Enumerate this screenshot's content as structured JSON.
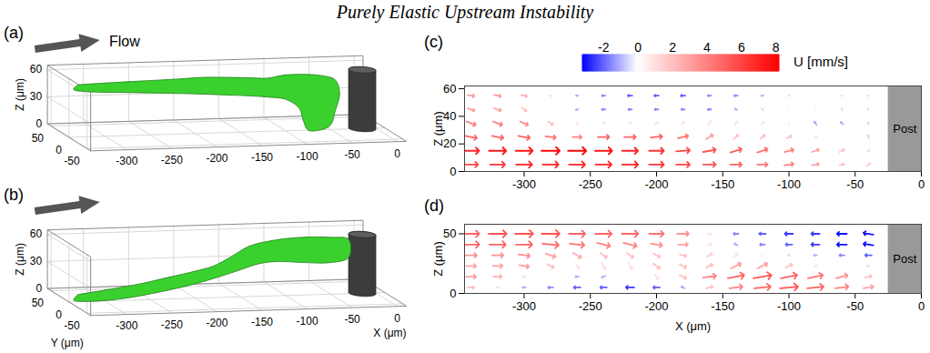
{
  "title": "Purely Elastic Upstream Instability",
  "colorbar": {
    "label": "U [mm/s]",
    "lim": [
      -3.2,
      8.2
    ],
    "midpoint": 0,
    "ticks": [
      -2,
      0,
      2,
      4,
      6,
      8
    ],
    "colors": [
      "#0000ff",
      "#ffffff",
      "#ff0000"
    ]
  },
  "chart_data": [
    {
      "type": "isosurface",
      "label": "(a)",
      "annotation": "Flow",
      "xlim": [
        -340,
        10
      ],
      "ylim": [
        -60,
        60
      ],
      "zlim": [
        0,
        65
      ],
      "xticks": [
        -300,
        -250,
        -200,
        -150,
        -100,
        -50,
        0
      ],
      "yticks": [
        -50,
        0,
        50
      ],
      "zticks": [
        0,
        30,
        60
      ],
      "zlabel": "Z (μm)",
      "color": "#3ad12e",
      "surface": {
        "Y": 0,
        "X": [
          -330,
          -300,
          -260,
          -220,
          -190,
          -160,
          -140,
          -120,
          -100,
          -80,
          -60,
          -45,
          -40,
          -45,
          -50,
          -60,
          -75,
          -80,
          -85,
          -100,
          -120,
          -140,
          -170,
          -200,
          -240,
          -280,
          -320,
          -335
        ],
        "Z": [
          58,
          59,
          60,
          61,
          62,
          61,
          60,
          59,
          62,
          62,
          60,
          55,
          40,
          20,
          5,
          0,
          0,
          10,
          25,
          35,
          38,
          40,
          42,
          44,
          46,
          48,
          50,
          53
        ]
      },
      "post": {
        "X": -15,
        "Y": 0,
        "radius": 14
      }
    },
    {
      "type": "isosurface",
      "label": "(b)",
      "xlim": [
        -340,
        10
      ],
      "ylim": [
        -60,
        60
      ],
      "zlim": [
        0,
        65
      ],
      "xticks": [
        -300,
        -250,
        -200,
        -150,
        -100,
        -50,
        0
      ],
      "yticks": [
        -50,
        0,
        50
      ],
      "zticks": [
        0,
        30,
        60
      ],
      "xlabel": "X (μm)",
      "ylabel": "Y (μm)",
      "zlabel": "Z (μm)",
      "color": "#3ad12e",
      "surface": {
        "Y": 0,
        "X": [
          -330,
          -300,
          -260,
          -230,
          -200,
          -180,
          -160,
          -140,
          -110,
          -80,
          -50,
          -30,
          -30,
          -50,
          -80,
          -110,
          -130,
          -150,
          -170,
          -200,
          -240,
          -280,
          -320,
          -335
        ],
        "Z": [
          8,
          12,
          18,
          24,
          30,
          35,
          45,
          56,
          62,
          64,
          63,
          60,
          40,
          35,
          36,
          38,
          36,
          30,
          24,
          16,
          8,
          2,
          0,
          2
        ]
      },
      "post": {
        "X": -15,
        "Y": 0,
        "radius": 14
      }
    },
    {
      "type": "quiver",
      "label": "(c)",
      "xlim": [
        -345,
        0
      ],
      "ylim": [
        0,
        62
      ],
      "xticks": [
        -300,
        -250,
        -200,
        -150,
        -100,
        -50,
        0
      ],
      "yticks": [
        0,
        20,
        40,
        60
      ],
      "ylabel": "Z (μm)",
      "post": {
        "x": [
          -25,
          0
        ],
        "label": "Post",
        "color": "#999999"
      },
      "x": [
        -340,
        -320,
        -300,
        -280,
        -260,
        -240,
        -220,
        -200,
        -180,
        -160,
        -140,
        -120,
        -100,
        -80,
        -60,
        -40
      ],
      "z": [
        5,
        15,
        25,
        35,
        45,
        55
      ],
      "u": [
        [
          6,
          6.5,
          7,
          7,
          7,
          7,
          7,
          6.5,
          6,
          5.5,
          5,
          4.5,
          4,
          3,
          2,
          1.5
        ],
        [
          7,
          7.5,
          7.5,
          8,
          8,
          7.5,
          7,
          6.5,
          6,
          5.5,
          5,
          4.5,
          4,
          3,
          2,
          1
        ],
        [
          5,
          5,
          5,
          4.5,
          4,
          5,
          5,
          5,
          4.5,
          3,
          2,
          2,
          2,
          1,
          0,
          -0.5
        ],
        [
          4,
          4,
          3.5,
          2,
          1,
          1,
          1,
          1,
          1,
          1,
          1,
          1,
          0.5,
          -1,
          -1,
          -0.5
        ],
        [
          3,
          3,
          2,
          0,
          -1,
          -1.5,
          -1.5,
          -1.5,
          -1.5,
          -1.5,
          -1,
          -0.5,
          0.5,
          0.5,
          -0.5,
          -0.5
        ],
        [
          3,
          3,
          2.5,
          1,
          -1,
          -1.5,
          -2,
          -2,
          -2,
          -1.5,
          -1.5,
          -1,
          -0.5,
          0.5,
          -0.5,
          -0.5
        ]
      ],
      "w": [
        [
          0,
          0,
          0,
          0,
          0,
          0,
          0,
          0,
          0,
          0,
          0,
          0,
          0.5,
          0.5,
          0.5,
          1
        ],
        [
          0,
          0,
          0,
          0,
          0,
          0,
          0,
          0,
          0.5,
          1,
          1.5,
          1.5,
          1,
          1,
          1,
          1
        ],
        [
          -1,
          -1,
          -1,
          -0.5,
          0,
          0,
          0,
          0.5,
          1,
          2,
          2,
          1.5,
          1,
          1,
          1.5,
          1.5
        ],
        [
          -1.5,
          -1.5,
          -1.5,
          -1.5,
          -1,
          0,
          0.5,
          1,
          1.5,
          2,
          1.5,
          1,
          1,
          1.5,
          1,
          0.5
        ],
        [
          -1,
          -1,
          -1.5,
          -1,
          -0.5,
          0,
          0,
          0,
          0,
          0,
          0.5,
          0.5,
          0.5,
          0.5,
          0.5,
          0.5
        ],
        [
          -0.5,
          -0.5,
          -0.5,
          -0.5,
          0,
          0,
          0,
          0,
          0,
          0,
          0,
          0,
          0,
          0,
          0,
          0
        ]
      ]
    },
    {
      "type": "quiver",
      "label": "(d)",
      "xlim": [
        -345,
        0
      ],
      "ylim": [
        0,
        58
      ],
      "xticks": [
        -300,
        -250,
        -200,
        -150,
        -100,
        -50,
        0
      ],
      "yticks": [
        0,
        50
      ],
      "xlabel": "X (μm)",
      "ylabel": "Z (μm)",
      "post": {
        "x": [
          -25,
          0
        ],
        "label": "Post",
        "color": "#999999"
      },
      "x": [
        -340,
        -320,
        -300,
        -280,
        -260,
        -240,
        -220,
        -200,
        -180,
        -160,
        -140,
        -120,
        -100,
        -80,
        -60,
        -40
      ],
      "z": [
        5,
        14,
        23,
        32,
        41,
        50
      ],
      "u": [
        [
          2,
          1,
          -1,
          -1.5,
          -2,
          -2,
          -2.5,
          -2,
          -1,
          2,
          4,
          5,
          5.5,
          5,
          4,
          3
        ],
        [
          3,
          2.5,
          1,
          0,
          -1,
          -1,
          0,
          1,
          2,
          4,
          5,
          5.5,
          5,
          4.5,
          3.5,
          2
        ],
        [
          3,
          3,
          3,
          2,
          1,
          1,
          1,
          2,
          2,
          2,
          3,
          3,
          2,
          1,
          0,
          -0.5
        ],
        [
          3.5,
          3.5,
          3.5,
          3,
          2.5,
          2,
          2,
          2,
          2,
          1.5,
          1,
          0.5,
          -0.5,
          -1,
          -1.5,
          -2
        ],
        [
          5,
          5,
          5,
          5,
          4.5,
          4,
          4,
          3.5,
          3,
          1,
          -1,
          -1.5,
          -2,
          -2.5,
          -3,
          -3
        ],
        [
          5,
          5.5,
          5.5,
          5.5,
          5,
          5,
          5,
          4.5,
          3.5,
          1,
          -1.5,
          -2,
          -2.5,
          -2.5,
          -3,
          -3
        ]
      ],
      "w": [
        [
          0,
          0,
          0,
          0,
          0,
          0,
          0,
          0,
          0.5,
          0.5,
          0.5,
          0.5,
          0.5,
          0.5,
          0.5,
          0.5
        ],
        [
          0,
          0,
          0,
          0,
          0,
          -0.5,
          -1,
          -1.5,
          -1,
          0.5,
          1,
          1,
          1,
          1,
          1,
          0.5
        ],
        [
          0,
          0,
          -0.5,
          -1,
          -1.5,
          -2,
          -2,
          -1.5,
          -1,
          1,
          1.5,
          1.5,
          1,
          0.5,
          0.5,
          0
        ],
        [
          0,
          0,
          -0.5,
          -1,
          -1.5,
          -1.5,
          -1.5,
          -1,
          -0.5,
          1,
          1,
          0.5,
          0.5,
          0,
          0,
          0
        ],
        [
          0,
          0,
          0,
          -0.5,
          -0.5,
          -1,
          -1,
          -0.5,
          0,
          0.5,
          0.5,
          0,
          0,
          0,
          0,
          0.5
        ],
        [
          0,
          0,
          0,
          0,
          0,
          0,
          0,
          0,
          0,
          0,
          0,
          0,
          0,
          0,
          0,
          0.5
        ]
      ]
    }
  ]
}
